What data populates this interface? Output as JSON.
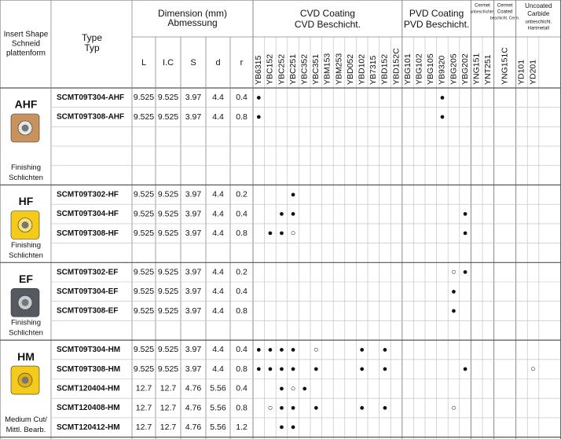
{
  "header": {
    "insert_shape": [
      "Insert Shape",
      "Schneid",
      "plattenform"
    ],
    "type": [
      "Type",
      "Typ"
    ],
    "dimension": [
      "Dimension (mm)",
      "Abmessung"
    ],
    "dimension_columns": [
      "L",
      "I.C",
      "S",
      "d",
      "r"
    ]
  },
  "grade_groups": [
    {
      "title": [
        "CVD Coating",
        "CVD Beschicht."
      ],
      "grades": [
        "YB6315",
        "YBC152",
        "YBC252",
        "YBC251",
        "YBC352",
        "YBC351",
        "YBM153",
        "YBM253",
        "YBD052",
        "YBD102",
        "YB7315",
        "YBD152",
        "YBD152C"
      ]
    },
    {
      "title": [
        "PVD Coating",
        "PVD Beschicht."
      ],
      "grades": [
        "YBG101",
        "YBG102",
        "YBG105",
        "YB9320",
        "YBG205",
        "YBG202"
      ]
    },
    {
      "title": [
        "Cermet",
        "unbeschichtet"
      ],
      "grades": [
        "YNG151",
        "YNT251"
      ]
    },
    {
      "title": [
        "Cermet",
        "Coated",
        "beschicht. Cerm."
      ],
      "grades": [
        "YNG151C"
      ]
    },
    {
      "title": [
        "Uncoated",
        "Carbide",
        "unbeschicht.",
        "Hartmetall"
      ],
      "grades": [
        "YD101",
        "YD201"
      ]
    }
  ],
  "sections": [
    {
      "label": "AHF",
      "caption": [
        "Finishing",
        "Schlichten"
      ],
      "rows": [
        {
          "type": "SCMT09T304-AHF",
          "dims": [
            9.525,
            9.525,
            3.97,
            4.4,
            0.4
          ],
          "marks": [
            {
              "grade": "YB6315",
              "symbol": "●"
            },
            {
              "grade": "YB9320",
              "symbol": "●"
            }
          ]
        },
        {
          "type": "SCMT09T308-AHF",
          "dims": [
            9.525,
            9.525,
            3.97,
            4.4,
            0.8
          ],
          "marks": [
            {
              "grade": "YB6315",
              "symbol": "●"
            },
            {
              "grade": "YB9320",
              "symbol": "●"
            }
          ]
        }
      ]
    },
    {
      "label": "HF",
      "caption": [
        "Finishing",
        "Schlichten"
      ],
      "rows": [
        {
          "type": "SCMT09T302-HF",
          "dims": [
            9.525,
            9.525,
            3.97,
            4.4,
            0.2
          ],
          "marks": [
            {
              "grade": "YBC251",
              "symbol": "●"
            }
          ]
        },
        {
          "type": "SCMT09T304-HF",
          "dims": [
            9.525,
            9.525,
            3.97,
            4.4,
            0.4
          ],
          "marks": [
            {
              "grade": "YBC252",
              "symbol": "●"
            },
            {
              "grade": "YBC251",
              "symbol": "●"
            },
            {
              "grade": "YBG202",
              "symbol": "●"
            }
          ]
        },
        {
          "type": "SCMT09T308-HF",
          "dims": [
            9.525,
            9.525,
            3.97,
            4.4,
            0.8
          ],
          "marks": [
            {
              "grade": "YBC152",
              "symbol": "●"
            },
            {
              "grade": "YBC252",
              "symbol": "●"
            },
            {
              "grade": "YBC251",
              "symbol": "○"
            },
            {
              "grade": "YBG202",
              "symbol": "●"
            }
          ]
        }
      ]
    },
    {
      "label": "EF",
      "caption": [
        "Finishing",
        "Schlichten"
      ],
      "rows": [
        {
          "type": "SCMT09T302-EF",
          "dims": [
            9.525,
            9.525,
            3.97,
            4.4,
            0.2
          ],
          "marks": [
            {
              "grade": "YBG205",
              "symbol": "○"
            },
            {
              "grade": "YBG202",
              "symbol": "●"
            }
          ]
        },
        {
          "type": "SCMT09T304-EF",
          "dims": [
            9.525,
            9.525,
            3.97,
            4.4,
            0.4
          ],
          "marks": [
            {
              "grade": "YBG205",
              "symbol": "●"
            }
          ]
        },
        {
          "type": "SCMT09T308-EF",
          "dims": [
            9.525,
            9.525,
            3.97,
            4.4,
            0.8
          ],
          "marks": [
            {
              "grade": "YBG205",
              "symbol": "●"
            }
          ]
        }
      ]
    },
    {
      "label": "HM",
      "caption": [
        "Medium Cut/",
        "Mittl. Bearb."
      ],
      "rows": [
        {
          "type": "SCMT09T304-HM",
          "dims": [
            9.525,
            9.525,
            3.97,
            4.4,
            0.4
          ],
          "marks": [
            {
              "grade": "YB6315",
              "symbol": "●"
            },
            {
              "grade": "YBC152",
              "symbol": "●"
            },
            {
              "grade": "YBC252",
              "symbol": "●"
            },
            {
              "grade": "YBC251",
              "symbol": "●"
            },
            {
              "grade": "YBC351",
              "symbol": "○"
            },
            {
              "grade": "YBD102",
              "symbol": "●"
            },
            {
              "grade": "YBD152",
              "symbol": "●"
            }
          ]
        },
        {
          "type": "SCMT09T308-HM",
          "dims": [
            9.525,
            9.525,
            3.97,
            4.4,
            0.8
          ],
          "marks": [
            {
              "grade": "YB6315",
              "symbol": "●"
            },
            {
              "grade": "YBC152",
              "symbol": "●"
            },
            {
              "grade": "YBC252",
              "symbol": "●"
            },
            {
              "grade": "YBC251",
              "symbol": "●"
            },
            {
              "grade": "YBC351",
              "symbol": "●"
            },
            {
              "grade": "YBD102",
              "symbol": "●"
            },
            {
              "grade": "YBD152",
              "symbol": "●"
            },
            {
              "grade": "YBG202",
              "symbol": "●"
            },
            {
              "grade": "YD201",
              "symbol": "○"
            }
          ]
        },
        {
          "type": "SCMT120404-HM",
          "dims": [
            12.7,
            12.7,
            4.76,
            5.56,
            0.4
          ],
          "marks": [
            {
              "grade": "YBC252",
              "symbol": "●"
            },
            {
              "grade": "YBC251",
              "symbol": "○"
            },
            {
              "grade": "YBC352",
              "symbol": "●"
            }
          ]
        },
        {
          "type": "SCMT120408-HM",
          "dims": [
            12.7,
            12.7,
            4.76,
            5.56,
            0.8
          ],
          "marks": [
            {
              "grade": "YBC152",
              "symbol": "○"
            },
            {
              "grade": "YBC252",
              "symbol": "●"
            },
            {
              "grade": "YBC251",
              "symbol": "●"
            },
            {
              "grade": "YBC351",
              "symbol": "●"
            },
            {
              "grade": "YBD102",
              "symbol": "●"
            },
            {
              "grade": "YBD152",
              "symbol": "●"
            },
            {
              "grade": "YBG205",
              "symbol": "○"
            }
          ]
        },
        {
          "type": "SCMT120412-HM",
          "dims": [
            12.7,
            12.7,
            4.76,
            5.56,
            1.2
          ],
          "marks": [
            {
              "grade": "YBC252",
              "symbol": "●"
            },
            {
              "grade": "YBC251",
              "symbol": "●"
            }
          ]
        }
      ]
    }
  ]
}
